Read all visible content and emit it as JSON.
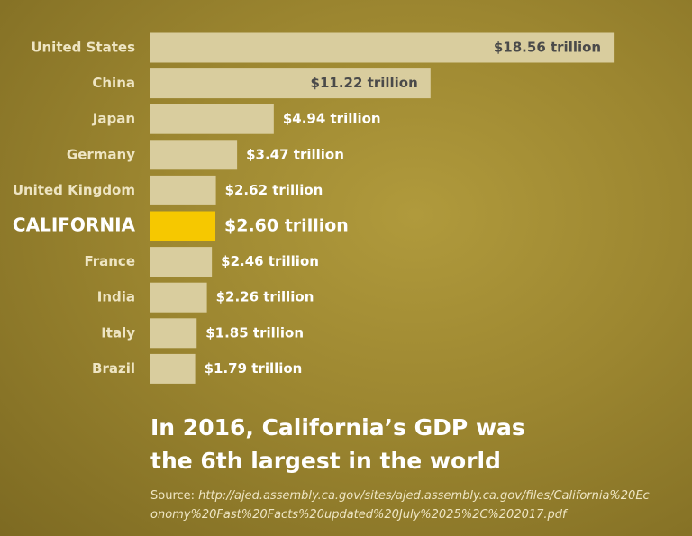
{
  "chart_data": {
    "type": "bar",
    "orientation": "horizontal",
    "title": "In 2016, California’s GDP was the 6th largest in the world",
    "categories": [
      "United States",
      "China",
      "Japan",
      "Germany",
      "United Kingdom",
      "CALIFORNIA",
      "France",
      "India",
      "Italy",
      "Brazil"
    ],
    "values": [
      18.56,
      11.22,
      4.94,
      3.47,
      2.62,
      2.6,
      2.46,
      2.26,
      1.85,
      1.79
    ],
    "value_labels": [
      "$18.56 trillion",
      "$11.22 trillion",
      "$4.94 trillion",
      "$3.47 trillion",
      "$2.62 trillion",
      "$2.60 trillion",
      "$2.46 trillion",
      "$2.26 trillion",
      "$1.85 trillion",
      "$1.79 trillion"
    ],
    "colors": [
      "#d9cd9e",
      "#d9cd9e",
      "#d9cd9e",
      "#d9cd9e",
      "#d9cd9e",
      "#f6c800",
      "#d9cd9e",
      "#d9cd9e",
      "#d9cd9e",
      "#d9cd9e"
    ],
    "source_label": "Source:",
    "source": "http://ajed.assembly.ca.gov/sites/ajed.assembly.ca.gov/files/California%20Economy%20Fast%20Facts%20updated%20July%2025%2C%202017.pdf"
  }
}
